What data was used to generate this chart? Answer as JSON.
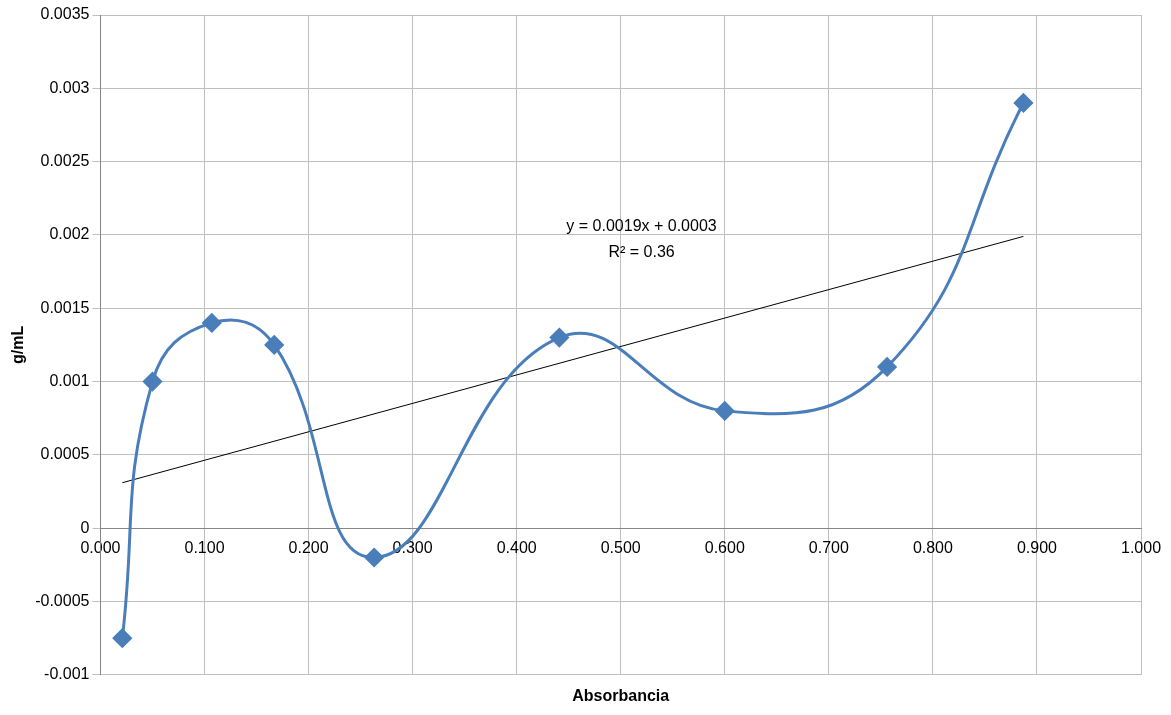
{
  "chart_data": {
    "type": "line",
    "xlabel": "Absorbancia",
    "ylabel": "g/mL",
    "xlim": [
      0,
      1
    ],
    "xticks": [
      {
        "value": 0,
        "label": "0.000"
      },
      {
        "value": 0.1,
        "label": "0.100"
      },
      {
        "value": 0.2,
        "label": "0.200"
      },
      {
        "value": 0.3,
        "label": "0.300"
      },
      {
        "value": 0.4,
        "label": "0.400"
      },
      {
        "value": 0.5,
        "label": "0.500"
      },
      {
        "value": 0.6,
        "label": "0.600"
      },
      {
        "value": 0.7,
        "label": "0.700"
      },
      {
        "value": 0.8,
        "label": "0.800"
      },
      {
        "value": 0.9,
        "label": "0.900"
      },
      {
        "value": 1,
        "label": "1.000"
      }
    ],
    "ylim": [
      -0.001,
      0.0035
    ],
    "yticks": [
      -0.001,
      -0.0005,
      0,
      0.0005,
      0.001,
      0.0015,
      0.002,
      0.0025,
      0.003,
      0.0035
    ],
    "grid": true,
    "legend": false,
    "line_style": "solid",
    "series": [
      {
        "marker": "diamond",
        "color": "#4a7ebb",
        "x": [
          0.021,
          0.05,
          0.107,
          0.167,
          0.263,
          0.441,
          0.6,
          0.756,
          0.887
        ],
        "values": [
          -0.00075,
          0.001,
          0.0014,
          0.00125,
          -0.0002,
          0.0013,
          0.0008,
          0.0011,
          0.0029
        ]
      },
      {
        "type": "line",
        "marker": "none",
        "color": "#000000",
        "x": [
          0.021,
          0.887
        ],
        "values": [
          0.00031,
          0.00199
        ]
      }
    ],
    "annotations": [
      "y = 0.0019x + 0.0003",
      "R² = 0.36"
    ]
  }
}
